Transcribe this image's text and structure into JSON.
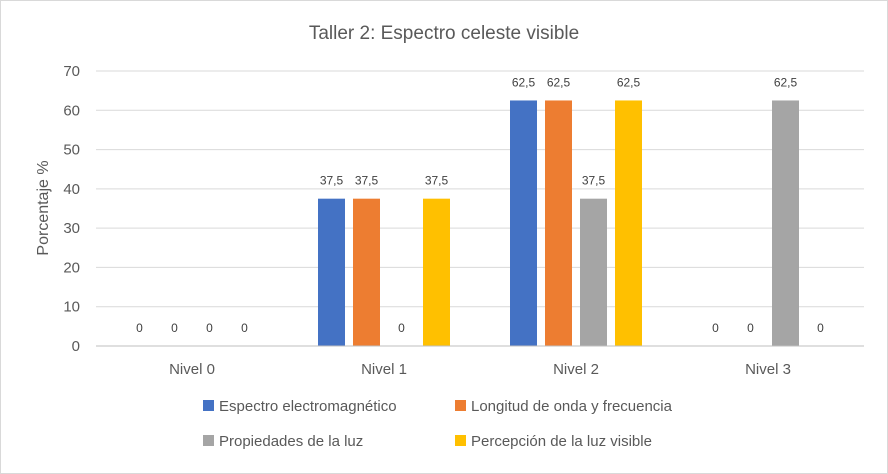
{
  "chart_data": {
    "type": "bar",
    "title": "Taller 2: Espectro celeste visible",
    "xlabel": "",
    "ylabel": "Porcentaje %",
    "ylim": [
      0,
      70
    ],
    "yticks": [
      0,
      10,
      20,
      30,
      40,
      50,
      60,
      70
    ],
    "grid": true,
    "legend_position": "bottom",
    "categories": [
      "Nivel 0",
      "Nivel 1",
      "Nivel 2",
      "Nivel 3"
    ],
    "series": [
      {
        "name": "Espectro electromagnético",
        "color": "#4472c4",
        "values": [
          0,
          37.5,
          62.5,
          0
        ]
      },
      {
        "name": "Longitud de onda y frecuencia",
        "color": "#ed7d31",
        "values": [
          0,
          37.5,
          62.5,
          0
        ]
      },
      {
        "name": "Propiedades de la luz",
        "color": "#a5a5a5",
        "values": [
          0,
          0,
          37.5,
          62.5
        ]
      },
      {
        "name": "Percepción de la luz visible",
        "color": "#ffc000",
        "values": [
          0,
          37.5,
          62.5,
          0
        ]
      }
    ],
    "data_labels": [
      [
        "0",
        "37,5",
        "62,5",
        "0"
      ],
      [
        "0",
        "37,5",
        "62,5",
        "0"
      ],
      [
        "0",
        "0",
        "37,5",
        "62,5"
      ],
      [
        "0",
        "37,5",
        "62,5",
        "0"
      ]
    ]
  }
}
